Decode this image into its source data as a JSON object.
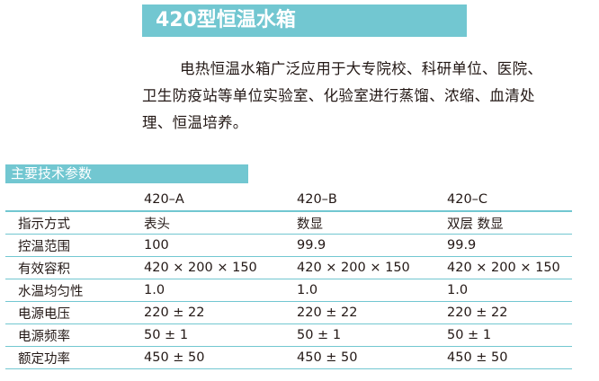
{
  "title": "420型恒温水箱",
  "description": "电热恒温水箱广泛应用于大专院校、科研单位、医院、卫生防疫站等单位实验室、化验室进行蒸馏、浓缩、血清处理、恒温培养。",
  "section_title": "主要技术参数",
  "table": {
    "headers": [
      "",
      "420–A",
      "420–B",
      "420–C"
    ],
    "rows": [
      [
        "指示方式",
        "表头",
        "数显",
        "双层 数显"
      ],
      [
        "控温范围",
        "100",
        "99.9",
        "99.9"
      ],
      [
        "有效容积",
        "420 × 200 × 150",
        "420 × 200 × 150",
        "420 × 200 × 150"
      ],
      [
        "水温均匀性",
        "1.0",
        "1.0",
        "1.0"
      ],
      [
        "电源电压",
        "220 ± 22",
        "220 ± 22",
        "220 ± 22"
      ],
      [
        "电源频率",
        "50 ± 1",
        "50 ± 1",
        "50 ± 1"
      ],
      [
        "额定功率",
        "450 ± 50",
        "450 ± 50",
        "450 ± 50"
      ]
    ]
  },
  "colors": {
    "accent": "#72c7d1"
  }
}
